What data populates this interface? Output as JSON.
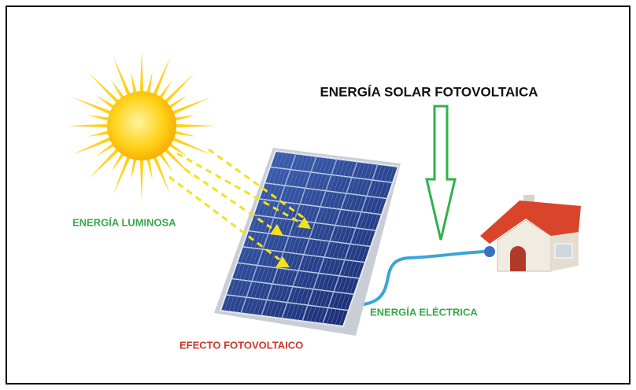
{
  "title": "ENERGÍA SOLAR FOTOVOLTAICA",
  "labels": {
    "light": "ENERGÍA LUMINOSA",
    "electric": "ENERGÍA ELÉCTRICA",
    "effect": "EFECTO FOTOVOLTAICO"
  }
}
